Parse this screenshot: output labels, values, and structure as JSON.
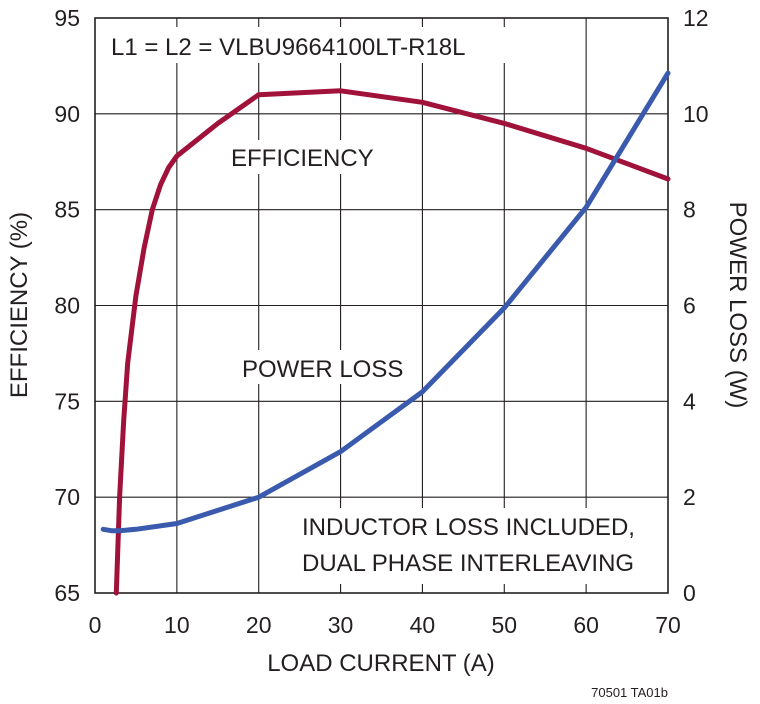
{
  "chart_data": {
    "type": "line",
    "xlabel": "LOAD CURRENT (A)",
    "ylabel_left": "EFFICIENCY (%)",
    "ylabel_right": "POWER LOSS (W)",
    "xlim": [
      0,
      70
    ],
    "ylim_left": [
      65,
      95
    ],
    "ylim_right": [
      0,
      12
    ],
    "x_ticks": [
      0,
      10,
      20,
      30,
      40,
      50,
      60,
      70
    ],
    "y_left_ticks": [
      65,
      70,
      75,
      80,
      85,
      90,
      95
    ],
    "y_right_ticks": [
      0,
      2,
      4,
      6,
      8,
      10,
      12
    ],
    "grid": true,
    "annotations": {
      "inductor": "L1 = L2 = VLBU9664100LT-R18L",
      "efficiency_label": "EFFICIENCY",
      "power_loss_label": "POWER LOSS",
      "note_line1": "INDUCTOR LOSS INCLUDED,",
      "note_line2": "DUAL PHASE INTERLEAVING"
    },
    "footnote": "70501 TA01b",
    "colors": {
      "efficiency": "#a0123a",
      "power_loss": "#3a5aad",
      "grid": "#231f20"
    },
    "series": [
      {
        "axis": "left",
        "color": "#a0123a",
        "x": [
          2.6,
          3,
          3.5,
          4,
          5,
          6,
          7,
          8,
          9,
          10,
          15,
          20,
          30,
          40,
          50,
          60,
          70
        ],
        "y": [
          65,
          70,
          74,
          77,
          80.5,
          83,
          85,
          86.3,
          87.2,
          87.8,
          89.5,
          91,
          91.2,
          90.6,
          89.5,
          88.2,
          86.6
        ]
      },
      {
        "axis": "right",
        "color": "#3a5aad",
        "x": [
          1,
          2,
          3,
          5,
          10,
          20,
          30,
          40,
          50,
          60,
          70
        ],
        "y": [
          1.33,
          1.3,
          1.3,
          1.33,
          1.45,
          2,
          2.95,
          4.2,
          5.95,
          8.05,
          10.85
        ]
      }
    ]
  }
}
